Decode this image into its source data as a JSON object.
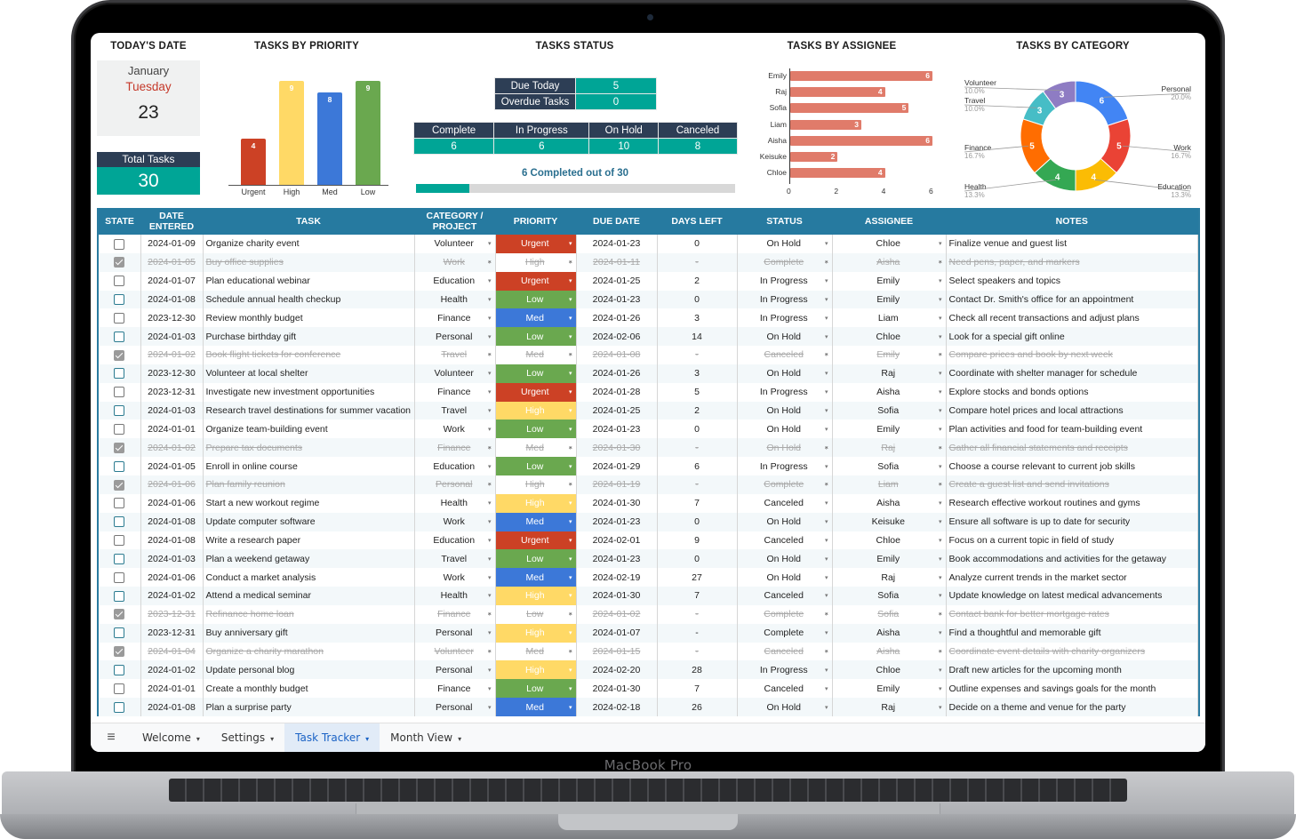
{
  "device": {
    "brand_label": "MacBook Pro"
  },
  "dashboard": {
    "todays_date": {
      "title": "TODAY'S DATE",
      "month": "January",
      "weekday": "Tuesday",
      "day": "23"
    },
    "total_tasks": {
      "label": "Total Tasks",
      "value": "30"
    },
    "tasks_by_priority": {
      "title": "TASKS BY PRIORITY"
    },
    "tasks_status": {
      "title": "TASKS STATUS",
      "due_today_label": "Due Today",
      "due_today_value": "5",
      "overdue_label": "Overdue Tasks",
      "overdue_value": "0",
      "headers": [
        "Complete",
        "In Progress",
        "On Hold",
        "Canceled"
      ],
      "values": [
        "6",
        "6",
        "10",
        "8"
      ],
      "progress_text": "6 Completed out of 30",
      "progress_percent": 20
    },
    "tasks_by_assignee": {
      "title": "TASKS BY ASSIGNEE"
    },
    "tasks_by_category": {
      "title": "TASKS BY CATEGORY"
    }
  },
  "chart_data": [
    {
      "type": "bar",
      "title": "TASKS BY PRIORITY",
      "categories": [
        "Urgent",
        "High",
        "Med",
        "Low"
      ],
      "values": [
        4,
        9,
        8,
        9
      ],
      "colors": [
        "#cc4125",
        "#ffd966",
        "#3c78d8",
        "#6aa84f"
      ],
      "data_labels": true,
      "grid": false
    },
    {
      "type": "bar",
      "orientation": "horizontal",
      "title": "TASKS BY ASSIGNEE",
      "categories": [
        "Emily",
        "Raj",
        "Sofia",
        "Liam",
        "Aisha",
        "Keisuke",
        "Chloe"
      ],
      "values": [
        6,
        4,
        5,
        3,
        6,
        2,
        4
      ],
      "xticks": [
        "0",
        "2",
        "4",
        "6"
      ],
      "xlim": [
        0,
        6
      ],
      "color": "#e07b6a",
      "data_labels": true
    },
    {
      "type": "pie",
      "donut": true,
      "title": "TASKS BY CATEGORY",
      "categories": [
        "Personal",
        "Work",
        "Education",
        "Health",
        "Finance",
        "Travel",
        "Volunteer"
      ],
      "values": [
        6,
        5,
        4,
        4,
        5,
        3,
        3
      ],
      "percents": [
        "20.0%",
        "16.7%",
        "13.3%",
        "13.3%",
        "16.7%",
        "10.0%",
        "10.0%"
      ],
      "colors": [
        "#4285f4",
        "#ea4335",
        "#fbbc04",
        "#34a853",
        "#ff6d01",
        "#46bdc6",
        "#8e7cc3"
      ]
    }
  ],
  "table": {
    "headers": {
      "state": "STATE",
      "date_entered": "DATE ENTERED",
      "task": "TASK",
      "category": "CATEGORY / PROJECT",
      "priority": "PRIORITY",
      "due_date": "DUE DATE",
      "days_left": "DAYS LEFT",
      "status": "STATUS",
      "assignee": "ASSIGNEE",
      "notes": "NOTES"
    },
    "rows": [
      {
        "done": false,
        "date": "2024-01-09",
        "task": "Organize charity event",
        "category": "Volunteer",
        "priority": "Urgent",
        "due": "2024-01-23",
        "days": "0",
        "status": "On Hold",
        "assignee": "Chloe",
        "notes": "Finalize venue and guest list"
      },
      {
        "done": true,
        "date": "2024-01-05",
        "task": "Buy office supplies",
        "category": "Work",
        "priority": "High",
        "due": "2024-01-11",
        "days": "-",
        "status": "Complete",
        "assignee": "Aisha",
        "notes": "Need pens, paper, and markers"
      },
      {
        "done": false,
        "date": "2024-01-07",
        "task": "Plan educational webinar",
        "category": "Education",
        "priority": "Urgent",
        "due": "2024-01-25",
        "days": "2",
        "status": "In Progress",
        "assignee": "Emily",
        "notes": "Select speakers and topics"
      },
      {
        "done": false,
        "date": "2024-01-08",
        "task": "Schedule annual health checkup",
        "category": "Health",
        "priority": "Low",
        "due": "2024-01-23",
        "days": "0",
        "status": "In Progress",
        "assignee": "Emily",
        "notes": "Contact Dr. Smith's office for an appointment"
      },
      {
        "done": false,
        "date": "2023-12-30",
        "task": "Review monthly budget",
        "category": "Finance",
        "priority": "Med",
        "due": "2024-01-26",
        "days": "3",
        "status": "In Progress",
        "assignee": "Liam",
        "notes": "Check all recent transactions and adjust plans"
      },
      {
        "done": false,
        "date": "2024-01-03",
        "task": "Purchase birthday gift",
        "category": "Personal",
        "priority": "Low",
        "due": "2024-02-06",
        "days": "14",
        "status": "On Hold",
        "assignee": "Chloe",
        "notes": "Look for a special gift online"
      },
      {
        "done": true,
        "date": "2024-01-02",
        "task": "Book flight tickets for conference",
        "category": "Travel",
        "priority": "Med",
        "due": "2024-01-08",
        "days": "-",
        "status": "Canceled",
        "assignee": "Emily",
        "notes": "Compare prices and book by next week"
      },
      {
        "done": false,
        "date": "2023-12-30",
        "task": "Volunteer at local shelter",
        "category": "Volunteer",
        "priority": "Low",
        "due": "2024-01-26",
        "days": "3",
        "status": "On Hold",
        "assignee": "Raj",
        "notes": "Coordinate with shelter manager for schedule"
      },
      {
        "done": false,
        "date": "2023-12-31",
        "task": "Investigate new investment opportunities",
        "category": "Finance",
        "priority": "Urgent",
        "due": "2024-01-28",
        "days": "5",
        "status": "In Progress",
        "assignee": "Aisha",
        "notes": "Explore stocks and bonds options"
      },
      {
        "done": false,
        "date": "2024-01-03",
        "task": "Research travel destinations for summer vacation",
        "category": "Travel",
        "priority": "High",
        "due": "2024-01-25",
        "days": "2",
        "status": "On Hold",
        "assignee": "Sofia",
        "notes": "Compare hotel prices and local attractions"
      },
      {
        "done": false,
        "date": "2024-01-01",
        "task": "Organize team-building event",
        "category": "Work",
        "priority": "Low",
        "due": "2024-01-23",
        "days": "0",
        "status": "On Hold",
        "assignee": "Emily",
        "notes": "Plan activities and food for team-building event"
      },
      {
        "done": true,
        "date": "2024-01-02",
        "task": "Prepare tax documents",
        "category": "Finance",
        "priority": "Med",
        "due": "2024-01-30",
        "days": "-",
        "status": "On Hold",
        "assignee": "Raj",
        "notes": "Gather all financial statements and receipts"
      },
      {
        "done": false,
        "date": "2024-01-05",
        "task": "Enroll in online course",
        "category": "Education",
        "priority": "Low",
        "due": "2024-01-29",
        "days": "6",
        "status": "In Progress",
        "assignee": "Sofia",
        "notes": "Choose a course relevant to current job skills"
      },
      {
        "done": true,
        "date": "2024-01-06",
        "task": "Plan family reunion",
        "category": "Personal",
        "priority": "High",
        "due": "2024-01-19",
        "days": "-",
        "status": "Complete",
        "assignee": "Liam",
        "notes": "Create a guest list and send invitations"
      },
      {
        "done": false,
        "date": "2024-01-06",
        "task": "Start a new workout regime",
        "category": "Health",
        "priority": "High",
        "due": "2024-01-30",
        "days": "7",
        "status": "Canceled",
        "assignee": "Aisha",
        "notes": "Research effective workout routines and gyms"
      },
      {
        "done": false,
        "date": "2024-01-08",
        "task": "Update computer software",
        "category": "Work",
        "priority": "Med",
        "due": "2024-01-23",
        "days": "0",
        "status": "On Hold",
        "assignee": "Keisuke",
        "notes": "Ensure all software is up to date for security"
      },
      {
        "done": false,
        "date": "2024-01-08",
        "task": "Write a research paper",
        "category": "Education",
        "priority": "Urgent",
        "due": "2024-02-01",
        "days": "9",
        "status": "Canceled",
        "assignee": "Chloe",
        "notes": "Focus on a current topic in field of study"
      },
      {
        "done": false,
        "date": "2024-01-03",
        "task": "Plan a weekend getaway",
        "category": "Travel",
        "priority": "Low",
        "due": "2024-01-23",
        "days": "0",
        "status": "On Hold",
        "assignee": "Emily",
        "notes": "Book accommodations and activities for the getaway"
      },
      {
        "done": false,
        "date": "2024-01-06",
        "task": "Conduct a market analysis",
        "category": "Work",
        "priority": "Med",
        "due": "2024-02-19",
        "days": "27",
        "status": "On Hold",
        "assignee": "Raj",
        "notes": "Analyze current trends in the market sector"
      },
      {
        "done": false,
        "date": "2024-01-02",
        "task": "Attend a medical seminar",
        "category": "Health",
        "priority": "High",
        "due": "2024-01-30",
        "days": "7",
        "status": "Canceled",
        "assignee": "Sofia",
        "notes": "Update knowledge on latest medical advancements"
      },
      {
        "done": true,
        "date": "2023-12-31",
        "task": "Refinance home loan",
        "category": "Finance",
        "priority": "Low",
        "due": "2024-01-02",
        "days": "-",
        "status": "Complete",
        "assignee": "Sofia",
        "notes": "Contact bank for better mortgage rates"
      },
      {
        "done": false,
        "date": "2023-12-31",
        "task": "Buy anniversary gift",
        "category": "Personal",
        "priority": "High",
        "due": "2024-01-07",
        "days": "-",
        "status": "Complete",
        "assignee": "Aisha",
        "notes": "Find a thoughtful and memorable gift"
      },
      {
        "done": true,
        "date": "2024-01-04",
        "task": "Organize a charity marathon",
        "category": "Volunteer",
        "priority": "Med",
        "due": "2024-01-15",
        "days": "-",
        "status": "Canceled",
        "assignee": "Aisha",
        "notes": "Coordinate event details with charity organizers"
      },
      {
        "done": false,
        "date": "2024-01-02",
        "task": "Update personal blog",
        "category": "Personal",
        "priority": "High",
        "due": "2024-02-20",
        "days": "28",
        "status": "In Progress",
        "assignee": "Chloe",
        "notes": "Draft new articles for the upcoming month"
      },
      {
        "done": false,
        "date": "2024-01-01",
        "task": "Create a monthly budget",
        "category": "Finance",
        "priority": "Low",
        "due": "2024-01-30",
        "days": "7",
        "status": "Canceled",
        "assignee": "Emily",
        "notes": "Outline expenses and savings goals for the month"
      },
      {
        "done": false,
        "date": "2024-01-08",
        "task": "Plan a surprise party",
        "category": "Personal",
        "priority": "Med",
        "due": "2024-02-18",
        "days": "26",
        "status": "On Hold",
        "assignee": "Raj",
        "notes": "Decide on a theme and venue for the party"
      }
    ]
  },
  "sheet_tabs": {
    "menu_icon": "hamburger-menu-icon",
    "tabs": [
      {
        "label": "Welcome",
        "active": false
      },
      {
        "label": "Settings",
        "active": false
      },
      {
        "label": "Task Tracker",
        "active": true
      },
      {
        "label": "Month View",
        "active": false
      }
    ]
  },
  "icons": {
    "dropdown": "▾",
    "menu": "≡"
  }
}
